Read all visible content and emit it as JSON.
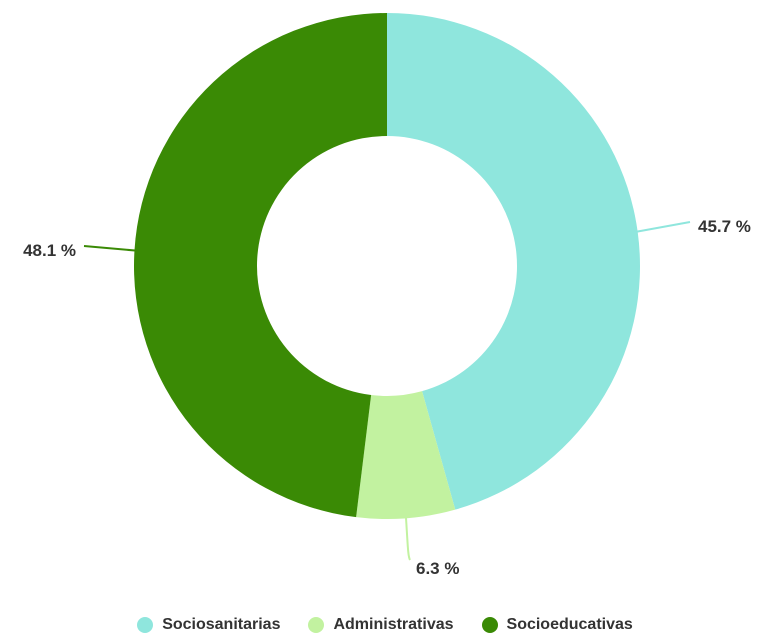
{
  "chart_data": {
    "type": "pie",
    "title": "",
    "legend_position": "bottom",
    "unit": "%",
    "series": [
      {
        "name": "Sociosanitarias",
        "value": 45.7,
        "label": "45.7 %",
        "color": "#8fe6dd"
      },
      {
        "name": "Administrativas",
        "value": 6.3,
        "label": "6.3 %",
        "color": "#c2f2a0"
      },
      {
        "name": "Socioeducativas",
        "value": 48.1,
        "label": "48.1 %",
        "color": "#3a8a05"
      }
    ]
  }
}
